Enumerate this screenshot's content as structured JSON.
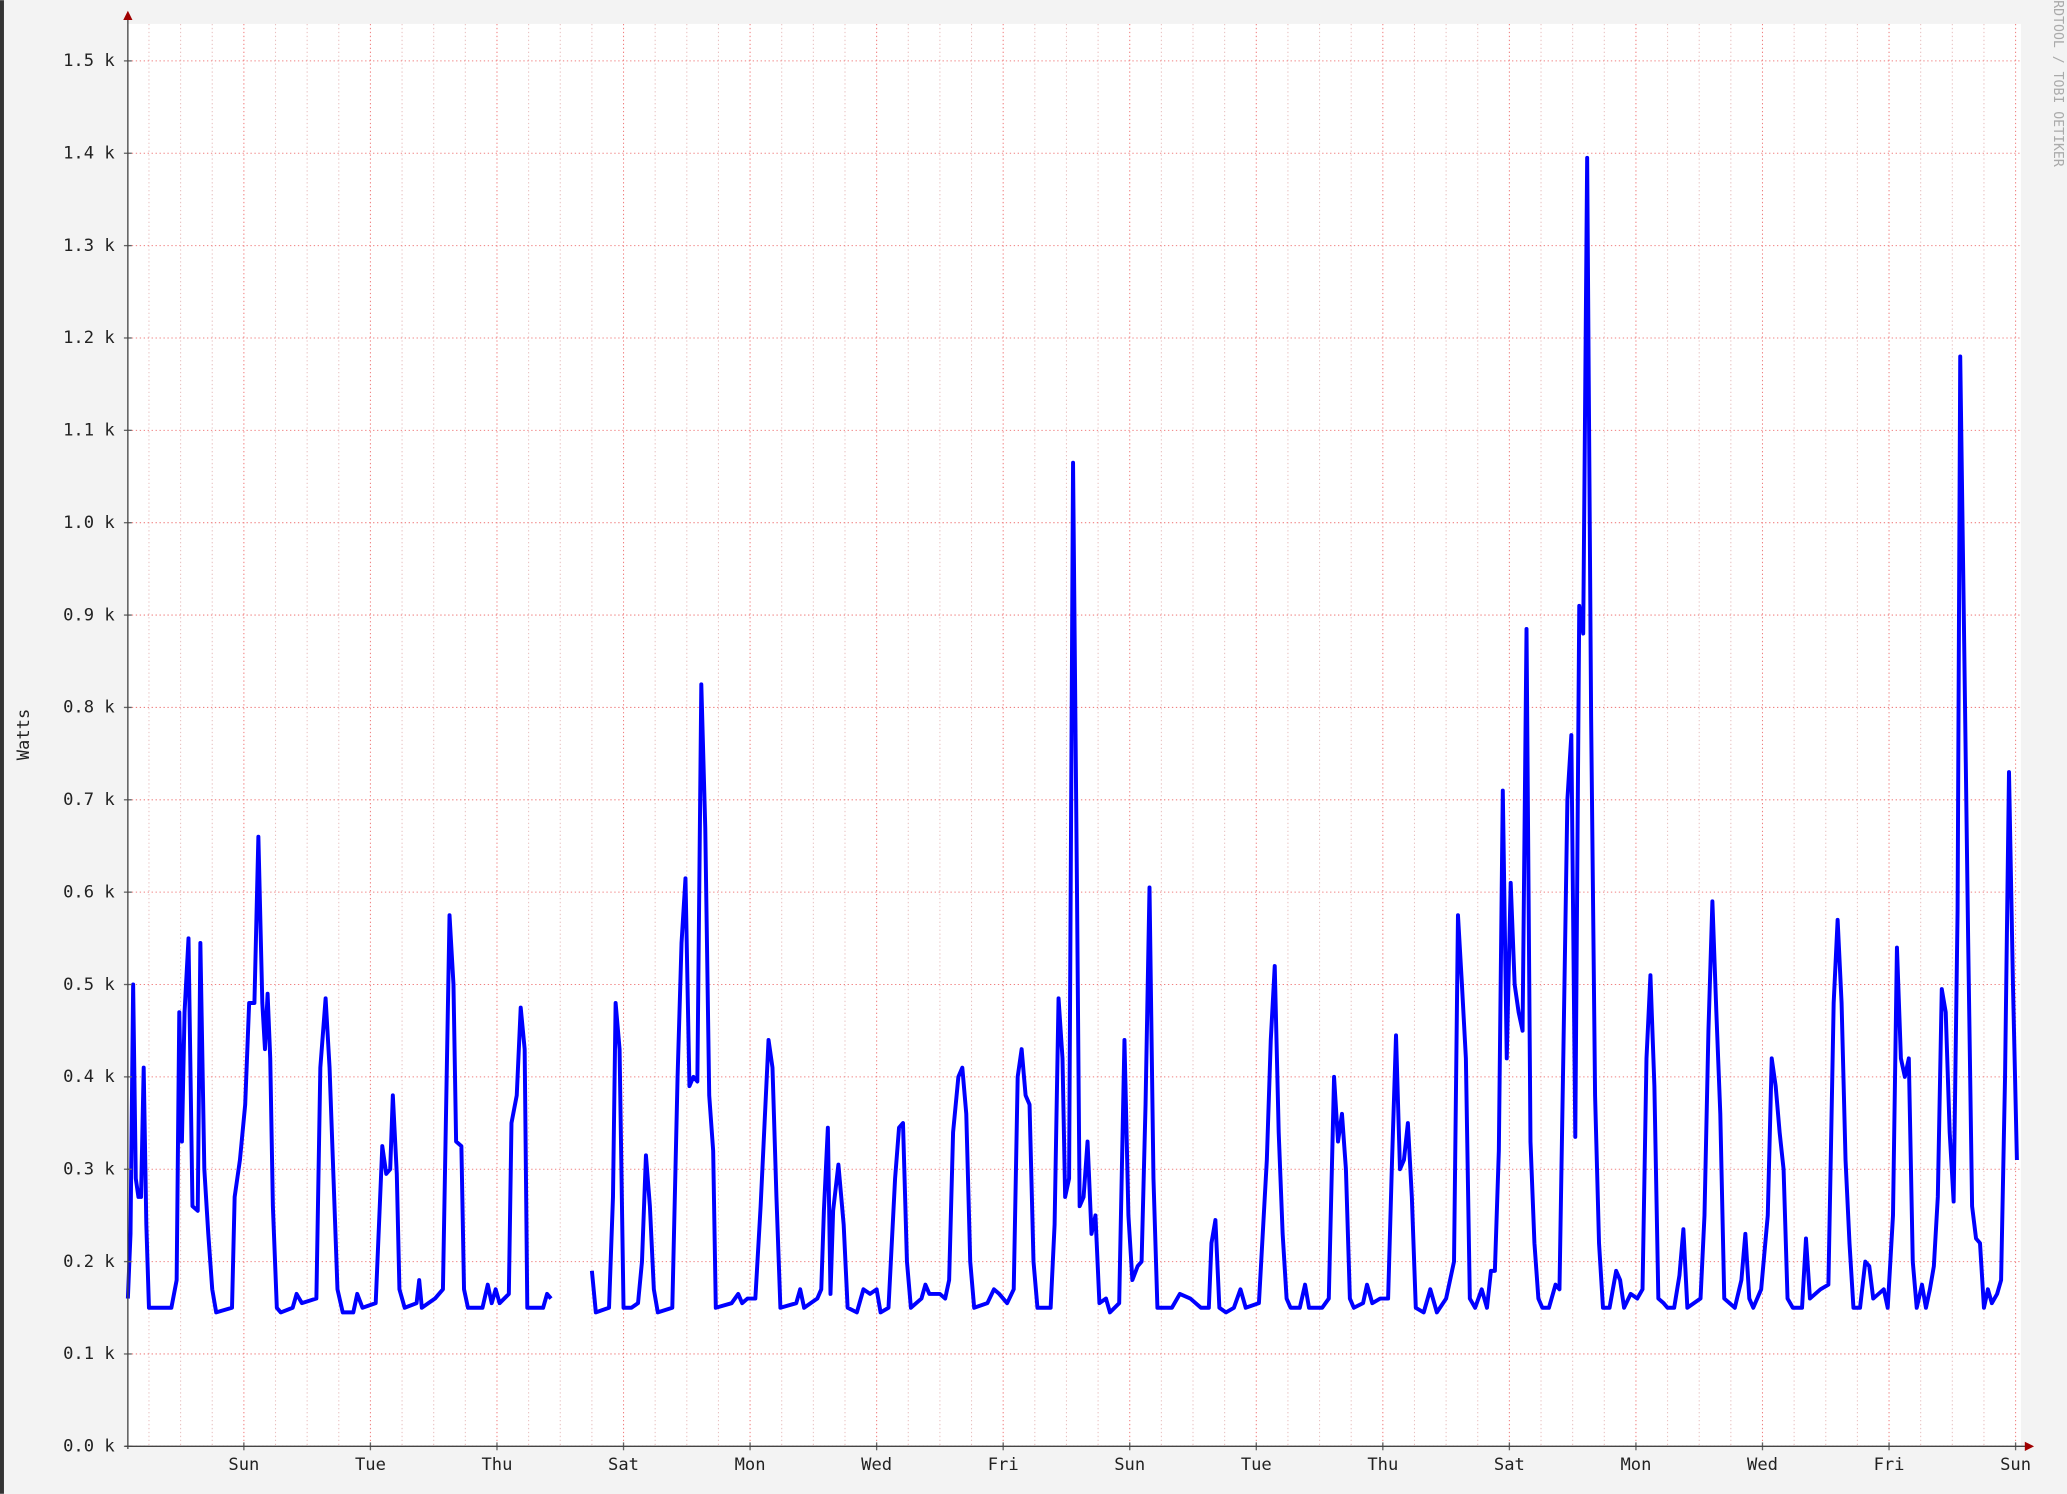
{
  "chart_data": {
    "type": "line",
    "ylabel": "Watts",
    "credit": "RRDTOOL / TOBI OETIKER",
    "ylim": [
      0,
      1540
    ],
    "yticks": [
      {
        "value": 0,
        "label": "0.0 k"
      },
      {
        "value": 100,
        "label": "0.1 k"
      },
      {
        "value": 200,
        "label": "0.2 k"
      },
      {
        "value": 300,
        "label": "0.3 k"
      },
      {
        "value": 400,
        "label": "0.4 k"
      },
      {
        "value": 500,
        "label": "0.5 k"
      },
      {
        "value": 600,
        "label": "0.6 k"
      },
      {
        "value": 700,
        "label": "0.7 k"
      },
      {
        "value": 800,
        "label": "0.8 k"
      },
      {
        "value": 900,
        "label": "0.9 k"
      },
      {
        "value": 1000,
        "label": "1.0 k"
      },
      {
        "value": 1100,
        "label": "1.1 k"
      },
      {
        "value": 1200,
        "label": "1.2 k"
      },
      {
        "value": 1300,
        "label": "1.3 k"
      },
      {
        "value": 1400,
        "label": "1.4 k"
      },
      {
        "value": 1500,
        "label": "1.5 k"
      }
    ],
    "xlim": [
      0,
      718
    ],
    "xticks": [
      {
        "value": 44,
        "label": "Sun"
      },
      {
        "value": 92,
        "label": "Tue"
      },
      {
        "value": 140,
        "label": "Thu"
      },
      {
        "value": 188,
        "label": "Sat"
      },
      {
        "value": 236,
        "label": "Mon"
      },
      {
        "value": 284,
        "label": "Wed"
      },
      {
        "value": 332,
        "label": "Fri"
      },
      {
        "value": 380,
        "label": "Sun"
      },
      {
        "value": 428,
        "label": "Tue"
      },
      {
        "value": 476,
        "label": "Thu"
      },
      {
        "value": 524,
        "label": "Sat"
      },
      {
        "value": 572,
        "label": "Mon"
      },
      {
        "value": 620,
        "label": "Wed"
      },
      {
        "value": 668,
        "label": "Fri"
      },
      {
        "value": 716,
        "label": "Sun"
      }
    ],
    "xminorticks": [
      8,
      20,
      32,
      56,
      68,
      80,
      104,
      116,
      128,
      152,
      164,
      176,
      200,
      212,
      224,
      248,
      260,
      272,
      296,
      308,
      320,
      344,
      356,
      368,
      392,
      404,
      416,
      440,
      452,
      464,
      488,
      500,
      512,
      536,
      548,
      560,
      584,
      596,
      608,
      632,
      644,
      656,
      680,
      692,
      704
    ],
    "grid": true,
    "x": [
      0,
      1,
      2,
      3,
      4,
      5,
      6,
      7,
      8,
      16.5,
      18.5,
      19.5,
      20.5,
      21.5,
      23,
      24.5,
      26.5,
      27.5,
      29,
      30.5,
      32,
      33.5,
      39.5,
      40.5,
      42.5,
      44.5,
      46,
      48,
      49.5,
      51,
      52,
      53,
      54,
      55,
      56.5,
      58,
      62.5,
      64,
      66,
      71.5,
      73,
      75,
      76.5,
      78,
      79.5,
      81.5,
      85.5,
      87,
      89,
      94,
      96.5,
      98,
      99.5,
      100.5,
      102,
      103,
      105,
      109.5,
      110.5,
      111.5,
      116.5,
      119.5,
      122,
      123.5,
      124.5,
      126.5,
      127.5,
      129,
      134.5,
      136.5,
      138,
      139.5,
      141,
      144.5,
      145.5,
      147.5,
      149,
      150.5,
      151.5,
      157.5,
      159,
      160.5,
      166,
      176,
      177.5,
      182.5,
      184,
      185,
      186.5,
      188,
      191,
      193.5,
      195,
      196.5,
      198,
      199.5,
      201,
      206.5,
      208.5,
      210,
      211.5,
      213,
      214.5,
      216,
      217.5,
      219,
      220.5,
      222,
      223,
      229,
      231.5,
      233,
      235,
      238,
      240,
      241.5,
      243,
      244.5,
      246,
      247.5,
      253.5,
      255,
      256.5,
      261.5,
      263,
      264,
      265.5,
      266.5,
      267.5,
      269.5,
      271.5,
      273,
      276.5,
      279,
      281.5,
      284,
      285.5,
      288.5,
      291,
      292.5,
      294,
      295.5,
      297,
      301,
      302.5,
      304,
      308,
      310,
      311.5,
      313,
      315,
      316.5,
      318,
      319.5,
      321,
      326,
      328.5,
      330.5,
      333.5,
      336,
      337.5,
      339,
      340.5,
      342,
      343.5,
      345,
      350,
      351.5,
      353,
      354.5,
      355.5,
      357,
      358.5,
      360,
      361,
      362.5,
      364,
      365.5,
      367,
      368.5,
      371,
      372.5,
      376,
      378,
      379.5,
      381,
      383,
      384.5,
      386,
      387.5,
      389,
      390.5,
      393.5,
      396,
      399,
      403,
      407,
      410,
      411,
      412.5,
      414,
      416.5,
      419.5,
      422,
      424,
      429,
      432,
      433.5,
      435,
      436.5,
      438,
      439.5,
      441,
      444.5,
      446.5,
      448,
      453,
      455.5,
      457.5,
      459,
      460.5,
      462,
      463.5,
      465,
      468.5,
      470,
      472,
      475,
      478,
      479.5,
      481,
      482.5,
      484,
      485.5,
      487,
      488.5,
      491.5,
      494,
      496.5,
      500,
      503,
      504.5,
      506,
      507.5,
      509,
      511,
      513.5,
      515.5,
      517,
      518.5,
      520,
      521.5,
      523,
      524.5,
      526,
      527.5,
      529,
      530.5,
      532,
      533.5,
      535,
      536.5,
      539,
      541.5,
      543,
      544.5,
      546,
      547.5,
      549,
      550.5,
      552,
      553.5,
      555,
      556.5,
      558,
      559.5,
      562,
      564.5,
      566,
      567.5,
      570,
      572.5,
      574.5,
      576,
      577.5,
      579,
      580.5,
      582.5,
      584,
      586.5,
      588.5,
      590,
      591.5,
      594,
      596.5,
      598,
      599.5,
      601,
      602.5,
      604,
      605.5,
      607.5,
      609.5,
      612,
      613.5,
      615,
      616.5,
      619.5,
      622,
      623.5,
      625,
      626.5,
      628,
      629.5,
      631.5,
      635,
      636.5,
      638,
      640,
      642,
      645,
      647,
      648.5,
      650,
      651.5,
      653,
      654.5,
      657,
      659,
      660.5,
      662,
      664,
      666,
      667.5,
      669.5,
      671,
      672.5,
      674,
      675.5,
      677,
      678.5,
      680.5,
      682,
      683.5,
      685,
      686.5,
      688,
      689.5,
      691,
      692.5,
      694,
      695,
      696.5,
      698,
      699.5,
      701,
      702.5,
      704,
      705.5,
      707,
      709,
      710.5,
      712,
      713.5,
      715,
      716.5
    ],
    "series": [
      {
        "color": "#0000ff",
        "values": [
          160,
          230,
          500,
          290,
          270,
          270,
          410,
          240,
          150,
          150,
          180,
          470,
          330,
          470,
          550,
          260,
          255,
          545,
          300,
          230,
          170,
          145,
          150,
          270,
          310,
          370,
          480,
          480,
          660,
          480,
          430,
          490,
          420,
          260,
          150,
          145,
          150,
          165,
          155,
          160,
          410,
          485,
          410,
          290,
          170,
          145,
          145,
          165,
          150,
          155,
          325,
          295,
          300,
          380,
          295,
          170,
          150,
          155,
          180,
          150,
          160,
          170,
          575,
          500,
          330,
          325,
          170,
          150,
          150,
          175,
          155,
          170,
          155,
          165,
          350,
          380,
          475,
          430,
          150,
          150,
          165,
          160,
          null,
          190,
          145,
          150,
          270,
          480,
          430,
          150,
          150,
          155,
          200,
          315,
          260,
          170,
          145,
          150,
          400,
          545,
          615,
          390,
          400,
          395,
          825,
          670,
          380,
          320,
          150,
          155,
          165,
          155,
          160,
          160,
          260,
          350,
          440,
          410,
          270,
          150,
          155,
          170,
          150,
          160,
          170,
          255,
          345,
          165,
          255,
          305,
          240,
          150,
          145,
          170,
          165,
          170,
          145,
          150,
          290,
          345,
          350,
          200,
          150,
          160,
          175,
          165,
          165,
          160,
          180,
          340,
          400,
          410,
          360,
          200,
          150,
          155,
          170,
          165,
          155,
          170,
          400,
          430,
          380,
          370,
          200,
          150,
          150,
          240,
          485,
          420,
          270,
          290,
          1065,
          600,
          260,
          270,
          330,
          230,
          250,
          155,
          160,
          145,
          155,
          440,
          250,
          180,
          195,
          200,
          370,
          605,
          290,
          150,
          150,
          150,
          165,
          160,
          150,
          150,
          220,
          245,
          150,
          145,
          150,
          170,
          150,
          155,
          310,
          440,
          520,
          340,
          230,
          160,
          150,
          150,
          175,
          150,
          150,
          160,
          400,
          330,
          360,
          300,
          160,
          150,
          155,
          175,
          155,
          160,
          160,
          310,
          445,
          300,
          310,
          350,
          270,
          150,
          145,
          170,
          145,
          160,
          200,
          575,
          500,
          420,
          160,
          150,
          170,
          150,
          190,
          190,
          320,
          710,
          420,
          610,
          500,
          470,
          450,
          885,
          330,
          220,
          160,
          150,
          150,
          175,
          170,
          430,
          700,
          770,
          335,
          910,
          880,
          1395,
          790,
          380,
          220,
          150,
          150,
          190,
          180,
          150,
          165,
          160,
          170,
          420,
          510,
          390,
          160,
          155,
          150,
          150,
          185,
          235,
          150,
          155,
          160,
          250,
          450,
          590,
          470,
          360,
          160,
          155,
          150,
          180,
          230,
          160,
          150,
          170,
          250,
          420,
          390,
          340,
          300,
          160,
          150,
          150,
          225,
          160,
          165,
          170,
          175,
          480,
          570,
          480,
          310,
          220,
          150,
          150,
          200,
          195,
          160,
          165,
          170,
          150,
          250,
          540,
          420,
          400,
          420,
          200,
          150,
          175,
          150,
          170,
          195,
          270,
          495,
          470,
          340,
          265,
          580,
          1180,
          870,
          550,
          260,
          225,
          220,
          150,
          170,
          155,
          165,
          180,
          400,
          730,
          500,
          310
        ]
      }
    ]
  }
}
